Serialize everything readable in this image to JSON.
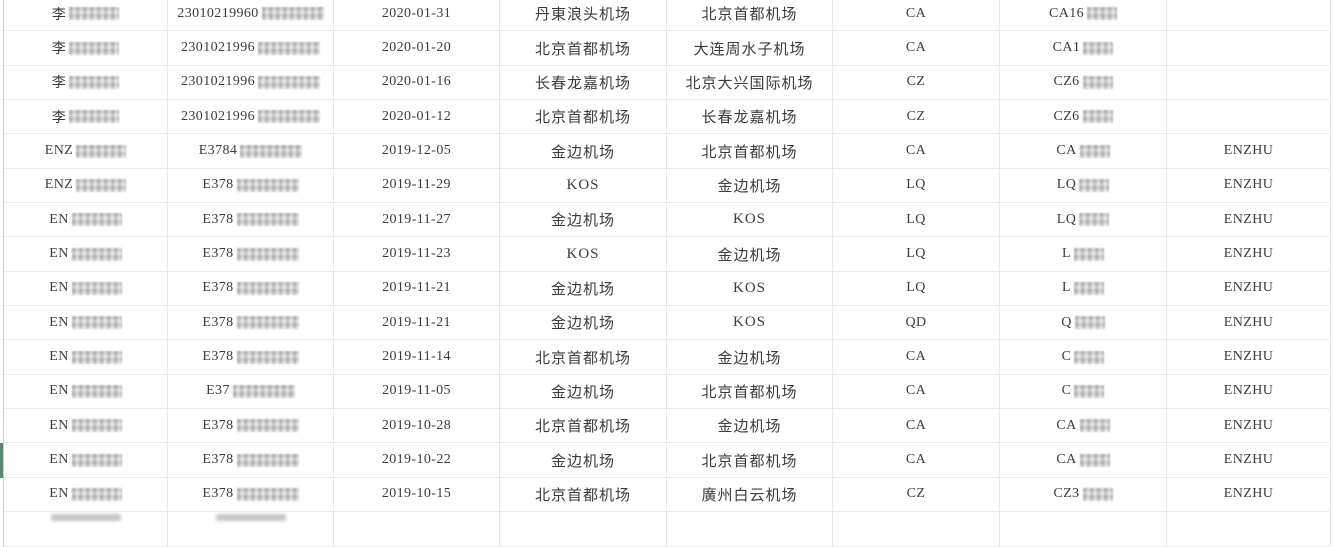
{
  "table": {
    "description": "flight-records-table",
    "rows": [
      {
        "name": "李",
        "name_redacted": true,
        "id": "23010219960",
        "id_redacted": true,
        "date": "2020-01-31",
        "departure": "丹東浪头机场",
        "arrival": "北京首都机场",
        "airline": "CA",
        "flight": "CA16",
        "flight_redacted": true,
        "tag": ""
      },
      {
        "name": "李",
        "name_redacted": true,
        "id": "2301021996",
        "id_redacted": true,
        "date": "2020-01-20",
        "departure": "北京首都机场",
        "arrival": "大连周水子机场",
        "airline": "CA",
        "flight": "CA1",
        "flight_redacted": true,
        "tag": ""
      },
      {
        "name": "李",
        "name_redacted": true,
        "id": "2301021996",
        "id_redacted": true,
        "date": "2020-01-16",
        "departure": "长春龙嘉机场",
        "arrival": "北京大兴国际机场",
        "airline": "CZ",
        "flight": "CZ6",
        "flight_redacted": true,
        "tag": ""
      },
      {
        "name": "李",
        "name_redacted": true,
        "id": "2301021996",
        "id_redacted": true,
        "date": "2020-01-12",
        "departure": "北京首都机场",
        "arrival": "长春龙嘉机场",
        "airline": "CZ",
        "flight": "CZ6",
        "flight_redacted": true,
        "tag": ""
      },
      {
        "name": "ENZ",
        "name_redacted": true,
        "id": "E3784",
        "id_redacted": true,
        "date": "2019-12-05",
        "departure": "金边机场",
        "arrival": "北京首都机场",
        "airline": "CA",
        "flight": "CA",
        "flight_redacted": true,
        "tag": "ENZHU"
      },
      {
        "name": "ENZ",
        "name_redacted": true,
        "id": "E378",
        "id_redacted": true,
        "date": "2019-11-29",
        "departure": "KOS",
        "arrival": "金边机场",
        "airline": "LQ",
        "flight": "LQ",
        "flight_redacted": true,
        "tag": "ENZHU"
      },
      {
        "name": "EN",
        "name_redacted": true,
        "id": "E378",
        "id_redacted": true,
        "date": "2019-11-27",
        "departure": "金边机场",
        "arrival": "KOS",
        "airline": "LQ",
        "flight": "LQ",
        "flight_redacted": true,
        "tag": "ENZHU"
      },
      {
        "name": "EN",
        "name_redacted": true,
        "id": "E378",
        "id_redacted": true,
        "date": "2019-11-23",
        "departure": "KOS",
        "arrival": "金边机场",
        "airline": "LQ",
        "flight": "L",
        "flight_redacted": true,
        "tag": "ENZHU"
      },
      {
        "name": "EN",
        "name_redacted": true,
        "id": "E378",
        "id_redacted": true,
        "date": "2019-11-21",
        "departure": "金边机场",
        "arrival": "KOS",
        "airline": "LQ",
        "flight": "L",
        "flight_redacted": true,
        "tag": "ENZHU"
      },
      {
        "name": "EN",
        "name_redacted": true,
        "id": "E378",
        "id_redacted": true,
        "date": "2019-11-21",
        "departure": "金边机场",
        "arrival": "KOS",
        "airline": "QD",
        "flight": "Q",
        "flight_redacted": true,
        "tag": "ENZHU"
      },
      {
        "name": "EN",
        "name_redacted": true,
        "id": "E378",
        "id_redacted": true,
        "date": "2019-11-14",
        "departure": "北京首都机场",
        "arrival": "金边机场",
        "airline": "CA",
        "flight": "C",
        "flight_redacted": true,
        "tag": "ENZHU"
      },
      {
        "name": "EN",
        "name_redacted": true,
        "id": "E37",
        "id_redacted": true,
        "date": "2019-11-05",
        "departure": "金边机场",
        "arrival": "北京首都机场",
        "airline": "CA",
        "flight": "C",
        "flight_redacted": true,
        "tag": "ENZHU"
      },
      {
        "name": "EN",
        "name_redacted": true,
        "id": "E378",
        "id_redacted": true,
        "date": "2019-10-28",
        "departure": "北京首都机场",
        "arrival": "金边机场",
        "airline": "CA",
        "flight": "CA",
        "flight_redacted": true,
        "tag": "ENZHU"
      },
      {
        "name": "EN",
        "name_redacted": true,
        "id": "E378",
        "id_redacted": true,
        "date": "2019-10-22",
        "departure": "金边机场",
        "arrival": "北京首都机场",
        "airline": "CA",
        "flight": "CA",
        "flight_redacted": true,
        "tag": "ENZHU"
      },
      {
        "name": "EN",
        "name_redacted": true,
        "id": "E378",
        "id_redacted": true,
        "date": "2019-10-15",
        "departure": "北京首都机场",
        "arrival": "廣州白云机场",
        "airline": "CZ",
        "flight": "CZ3",
        "flight_redacted": true,
        "tag": "ENZHU"
      }
    ],
    "partial_bottom_row": {
      "name_smudge": true,
      "id_smudge": true
    }
  },
  "indicator": {
    "color": "#55896d",
    "row": 14
  },
  "colors": {
    "grid_horizontal": "#ececec",
    "grid_vertical": "#e7e7e7",
    "left_border": "#cfcfcf",
    "text": "#3c3c3c",
    "redaction": "#d6d6d6",
    "background": "#ffffff"
  }
}
